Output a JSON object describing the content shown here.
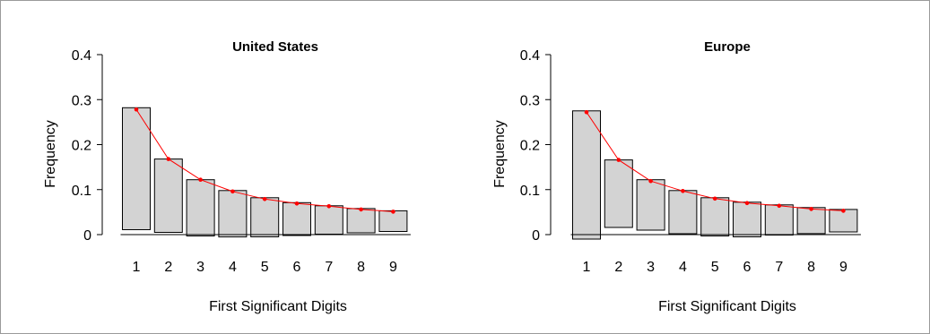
{
  "colors": {
    "bar_fill": "#d3d3d3",
    "bar_stroke": "#000000",
    "curve": "#ff0000",
    "axis": "#000000",
    "frame": "#9a9a9a"
  },
  "chart_data": [
    {
      "type": "bar",
      "title": "United States",
      "xlabel": "First Significant Digits",
      "ylabel": "Frequency",
      "ylim": [
        0,
        0.4
      ],
      "yticks": [
        0,
        0.1,
        0.2,
        0.3,
        0.4
      ],
      "ytick_labels": [
        "0",
        "0.1",
        "0.2",
        "0.3",
        "0.4"
      ],
      "categories": [
        "1",
        "2",
        "3",
        "4",
        "5",
        "6",
        "7",
        "8",
        "9"
      ],
      "bar_top": [
        0.282,
        0.168,
        0.122,
        0.098,
        0.082,
        0.071,
        0.064,
        0.058,
        0.053
      ],
      "bar_bottom": [
        0.011,
        0.005,
        -0.003,
        -0.005,
        -0.005,
        -0.002,
        0.001,
        0.004,
        0.007
      ],
      "benford": [
        0.278,
        0.168,
        0.122,
        0.096,
        0.079,
        0.069,
        0.063,
        0.056,
        0.051
      ],
      "grid": false,
      "legend": "none"
    },
    {
      "type": "bar",
      "title": "Europe",
      "xlabel": "First Significant Digits",
      "ylabel": "Frequency",
      "ylim": [
        0,
        0.4
      ],
      "yticks": [
        0,
        0.1,
        0.2,
        0.3,
        0.4
      ],
      "ytick_labels": [
        "0",
        "0.1",
        "0.2",
        "0.3",
        "0.4"
      ],
      "categories": [
        "1",
        "2",
        "3",
        "4",
        "5",
        "6",
        "7",
        "8",
        "9"
      ],
      "bar_top": [
        0.275,
        0.166,
        0.122,
        0.098,
        0.082,
        0.072,
        0.066,
        0.06,
        0.056
      ],
      "bar_bottom": [
        -0.01,
        0.016,
        0.01,
        0.002,
        -0.003,
        -0.005,
        -0.001,
        0.002,
        0.006
      ],
      "benford": [
        0.272,
        0.166,
        0.119,
        0.097,
        0.08,
        0.07,
        0.064,
        0.057,
        0.053
      ],
      "grid": false,
      "legend": "none"
    }
  ]
}
